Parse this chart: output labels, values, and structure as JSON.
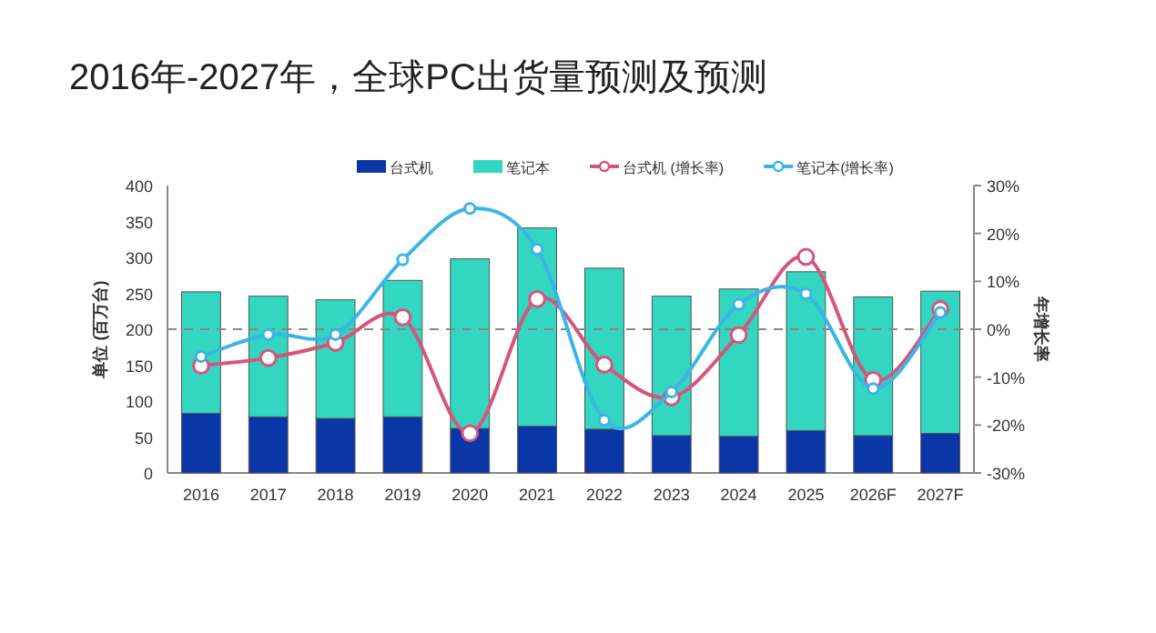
{
  "chart_data": {
    "type": "bar",
    "title": "2016年-2027年，全球PC出货量预测及预测",
    "ylabel": "单位 (百万台)",
    "y2label": "年增长率",
    "categories": [
      "2016",
      "2017",
      "2018",
      "2019",
      "2020",
      "2021",
      "2022",
      "2023",
      "2024",
      "2025",
      "2026F",
      "2027F"
    ],
    "stacked": true,
    "legend": "top",
    "grid": false,
    "ylim": [
      0,
      400
    ],
    "yticks": [
      0,
      50,
      100,
      150,
      200,
      250,
      300,
      350,
      400
    ],
    "y2lim": [
      -30,
      30
    ],
    "y2ticks": [
      {
        "value": -30,
        "label": "-30%"
      },
      {
        "value": -20,
        "label": "-20%"
      },
      {
        "value": -10,
        "label": "-10%"
      },
      {
        "value": 0,
        "label": "0%"
      },
      {
        "value": 10,
        "label": "10%"
      },
      {
        "value": 20,
        "label": "20%"
      },
      {
        "value": 30,
        "label": "30%"
      }
    ],
    "ref_lines": [
      {
        "axis": "y2",
        "value": 0,
        "color": "#888888",
        "line_style": "dashed"
      }
    ],
    "series": [
      {
        "name": "台式机",
        "color": "#0a36a8",
        "values": [
          83,
          78,
          76,
          78,
          62,
          65,
          61,
          52,
          51,
          59,
          52,
          55
        ]
      },
      {
        "name": "笔记本",
        "color": "#33d6c0",
        "values": [
          169,
          168,
          165,
          190,
          236,
          276,
          224,
          194,
          205,
          221,
          193,
          198
        ]
      },
      {
        "name": "台式机 (增长率)",
        "type": "line",
        "axis": "y2",
        "marker": "circle",
        "color": "#d6557a",
        "values": [
          -7.6,
          -6.0,
          -2.8,
          2.5,
          -21.7,
          6.3,
          -7.4,
          -14.2,
          -1.2,
          15.1,
          -10.6,
          4.2
        ]
      },
      {
        "name": "笔记本(增长率)",
        "type": "line",
        "axis": "y2",
        "marker": "circle",
        "color": "#3bb5e8",
        "values": [
          -5.7,
          -1.1,
          -1.1,
          14.5,
          25.2,
          16.7,
          -19.0,
          -13.1,
          5.2,
          7.4,
          -12.4,
          3.5
        ]
      }
    ]
  }
}
